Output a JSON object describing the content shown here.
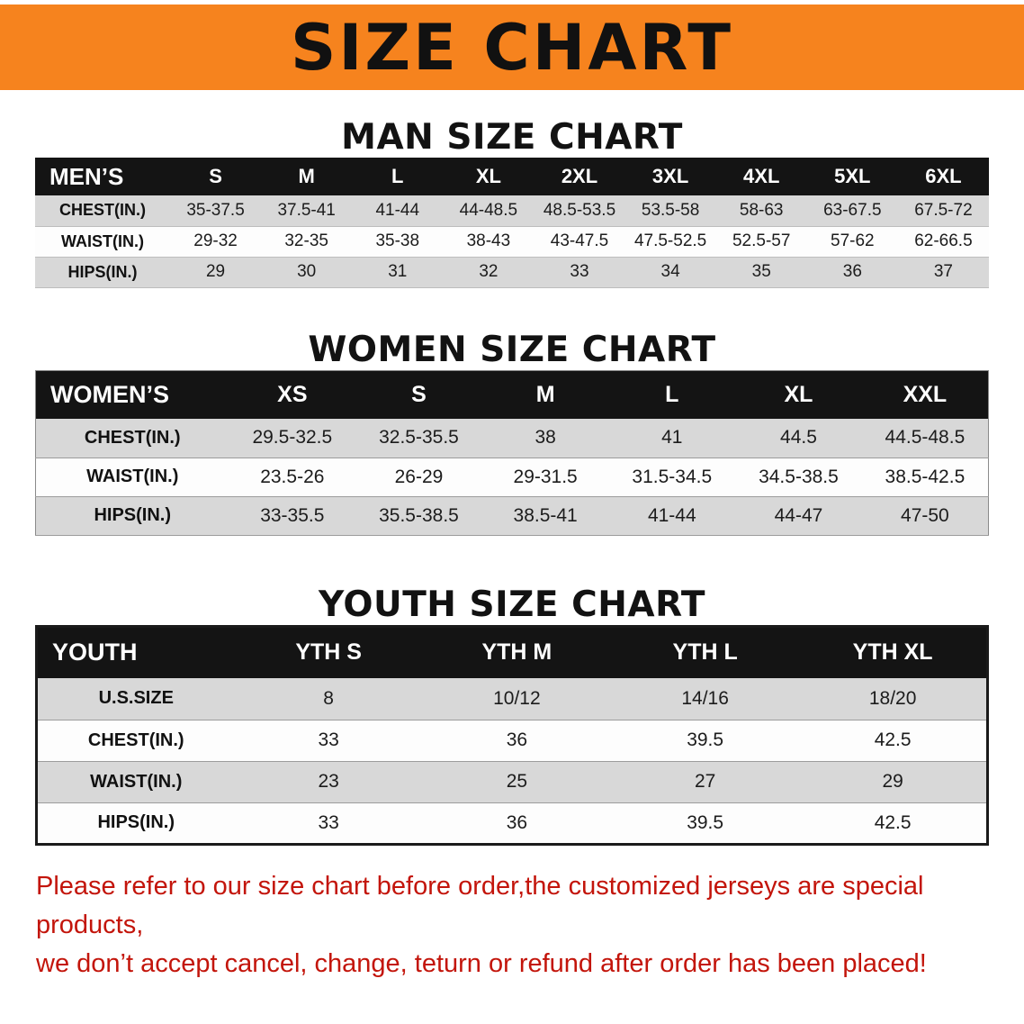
{
  "banner": {
    "title": "SIZE CHART"
  },
  "colors": {
    "banner_bg": "#f6831e",
    "table_header_bg": "#141414",
    "row_gray": "#d8d8d8",
    "row_white": "#fdfdfd",
    "disclaimer_red": "#c3150b"
  },
  "men": {
    "heading": "MAN SIZE CHART",
    "table": {
      "header": [
        "MEN’S",
        "S",
        "M",
        "L",
        "XL",
        "2XL",
        "3XL",
        "4XL",
        "5XL",
        "6XL"
      ],
      "rows": [
        {
          "label": "CHEST(IN.)",
          "values": [
            "35-37.5",
            "37.5-41",
            "41-44",
            "44-48.5",
            "48.5-53.5",
            "53.5-58",
            "58-63",
            "63-67.5",
            "67.5-72"
          ]
        },
        {
          "label": "WAIST(IN.)",
          "values": [
            "29-32",
            "32-35",
            "35-38",
            "38-43",
            "43-47.5",
            "47.5-52.5",
            "52.5-57",
            "57-62",
            "62-66.5"
          ]
        },
        {
          "label": "HIPS(IN.)",
          "values": [
            "29",
            "30",
            "31",
            "32",
            "33",
            "34",
            "35",
            "36",
            "37"
          ]
        }
      ]
    }
  },
  "women": {
    "heading": "WOMEN SIZE CHART",
    "table": {
      "header": [
        "WOMEN’S",
        "XS",
        "S",
        "M",
        "L",
        "XL",
        "XXL"
      ],
      "rows": [
        {
          "label": "CHEST(IN.)",
          "values": [
            "29.5-32.5",
            "32.5-35.5",
            "38",
            "41",
            "44.5",
            "44.5-48.5"
          ]
        },
        {
          "label": "WAIST(IN.)",
          "values": [
            "23.5-26",
            "26-29",
            "29-31.5",
            "31.5-34.5",
            "34.5-38.5",
            "38.5-42.5"
          ]
        },
        {
          "label": "HIPS(IN.)",
          "values": [
            "33-35.5",
            "35.5-38.5",
            "38.5-41",
            "41-44",
            "44-47",
            "47-50"
          ]
        }
      ]
    }
  },
  "youth": {
    "heading": "YOUTH SIZE CHART",
    "table": {
      "header": [
        "YOUTH",
        "YTH S",
        "YTH M",
        "YTH L",
        "YTH XL"
      ],
      "rows": [
        {
          "label": "U.S.SIZE",
          "values": [
            "8",
            "10/12",
            "14/16",
            "18/20"
          ]
        },
        {
          "label": "CHEST(IN.)",
          "values": [
            "33",
            "36",
            "39.5",
            "42.5"
          ]
        },
        {
          "label": "WAIST(IN.)",
          "values": [
            "23",
            "25",
            "27",
            "29"
          ]
        },
        {
          "label": "HIPS(IN.)",
          "values": [
            "33",
            "36",
            "39.5",
            "42.5"
          ]
        }
      ]
    }
  },
  "disclaimer": {
    "line1": "Please refer to our size chart before order,the customized jerseys are special products,",
    "line2": "we don’t accept cancel, change, teturn or refund after order has been placed!"
  }
}
